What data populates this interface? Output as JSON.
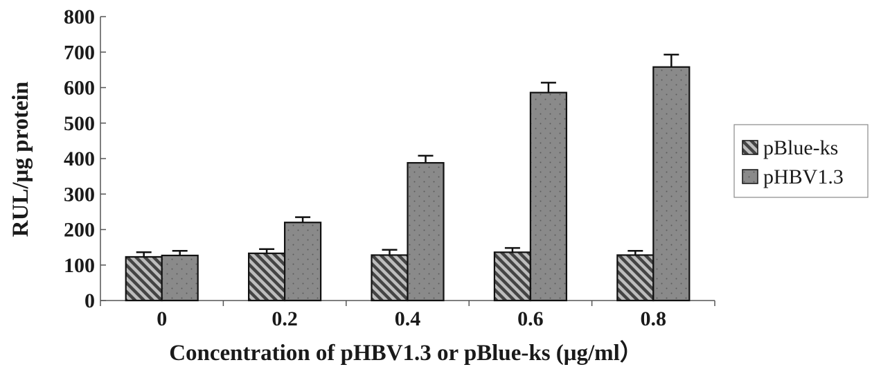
{
  "chart_data": {
    "type": "bar",
    "title": "",
    "xlabel": "Concentration of pHBV1.3 or pBlue-ks (μg/ml）",
    "ylabel": "RUL/μg protein",
    "categories": [
      "0",
      "0.2",
      "0.4",
      "0.6",
      "0.8"
    ],
    "ylim": [
      0,
      800
    ],
    "yticks": [
      "0",
      "100",
      "200",
      "300",
      "400",
      "500",
      "600",
      "700",
      "800"
    ],
    "grid": false,
    "legend_position": "right",
    "series": [
      {
        "name": "pBlue-ks",
        "values": [
          123,
          133,
          128,
          136,
          128
        ],
        "errors": [
          13,
          12,
          15,
          12,
          12
        ],
        "color": "#555555",
        "pattern": "diagonal-hatch"
      },
      {
        "name": "pHBV1.3",
        "values": [
          127,
          220,
          388,
          586,
          658
        ],
        "errors": [
          13,
          15,
          20,
          28,
          35
        ],
        "color": "#8a8a8a",
        "pattern": "dotted"
      }
    ]
  }
}
